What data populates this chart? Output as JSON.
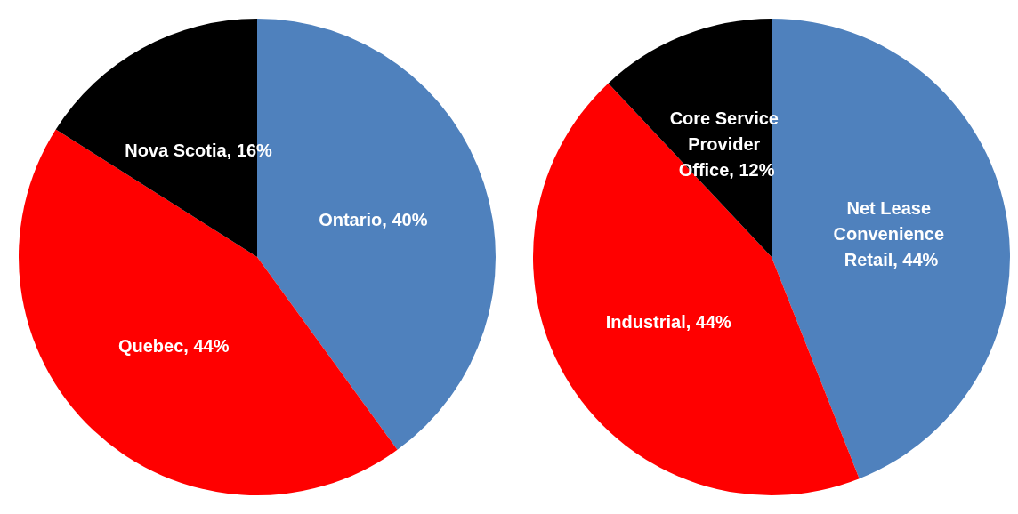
{
  "chart_data": [
    {
      "type": "pie",
      "categories": [
        "Ontario",
        "Quebec",
        "Nova Scotia"
      ],
      "values": [
        40,
        44,
        16
      ],
      "value_labels": [
        "40%",
        "44%",
        "16%"
      ],
      "colors": [
        "#4f81bd",
        "#ff0000",
        "#000000"
      ]
    },
    {
      "type": "pie",
      "categories": [
        "Net Lease Convenience Retail",
        "Industrial",
        "Core Service Provider Office"
      ],
      "values": [
        44,
        44,
        12
      ],
      "value_labels": [
        "44%",
        "44%",
        "12%"
      ],
      "colors": [
        "#4f81bd",
        "#ff0000",
        "#000000"
      ]
    }
  ]
}
